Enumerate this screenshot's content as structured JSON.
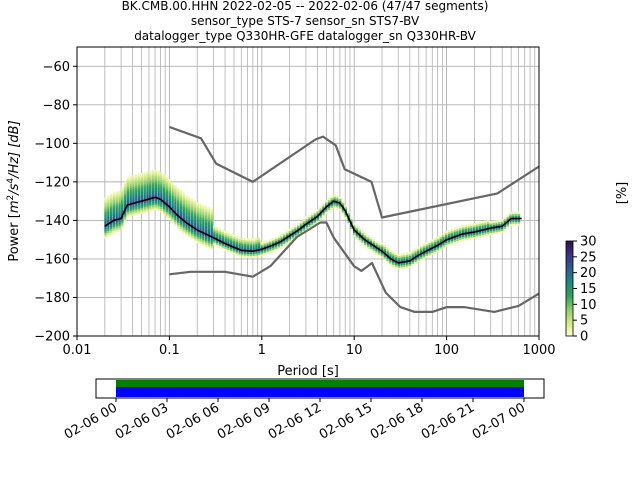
{
  "title_lines": [
    "BK.CMB.00.HHN   2022-02-05 -- 2022-02-06  (47/47 segments)",
    "sensor_type STS-7 sensor_sn STS7-BV",
    "datalogger_type Q330HR-GFE datalogger_sn Q330HR-BV"
  ],
  "colorbar": {
    "label": "[%]",
    "ticks": [
      "0",
      "5",
      "10",
      "15",
      "20",
      "25",
      "30"
    ],
    "tick_values": [
      0,
      5,
      10,
      15,
      20,
      25,
      30
    ],
    "range": [
      0,
      30
    ]
  },
  "timeline": {
    "ticks": [
      "02-06 00",
      "02-06 03",
      "02-06 06",
      "02-06 09",
      "02-06 12",
      "02-06 15",
      "02-06 18",
      "02-06 21",
      "02-07 00"
    ],
    "colors": {
      "upper": "#008000",
      "lower": "#0000ff"
    }
  },
  "chart_data": {
    "type": "line",
    "xlabel": "Period [s]",
    "ylabel": "Power [m²/s⁴/Hz] [dB]",
    "ylabel_parts": {
      "prefix": "Power [",
      "m": "m",
      "two": "2",
      "slash_s": "/s",
      "four": "4",
      "hz": "/Hz] [dB]"
    },
    "x_scale": "log",
    "xlim": [
      0.01,
      1000
    ],
    "ylim": [
      -200,
      -50
    ],
    "x_ticks": [
      0.01,
      0.1,
      1,
      10,
      100,
      1000
    ],
    "x_tick_labels": [
      "0.01",
      "0.1",
      "1",
      "10",
      "100",
      "1000"
    ],
    "y_ticks": [
      -200,
      -180,
      -160,
      -140,
      -120,
      -100,
      -80,
      -60
    ],
    "y_tick_labels": [
      "−200",
      "−180",
      "−160",
      "−140",
      "−120",
      "−100",
      "−80",
      "−60"
    ],
    "grid": true,
    "series": [
      {
        "role": "nhnm",
        "color": "#666666",
        "x": [
          0.1,
          0.22,
          0.32,
          0.8,
          3.8,
          4.6,
          6.3,
          7.9,
          15.4,
          20,
          354.8,
          1000
        ],
        "y": [
          -91.5,
          -97.4,
          -110.5,
          -120.0,
          -98.0,
          -96.5,
          -101.0,
          -113.5,
          -120.0,
          -138.5,
          -126.0,
          -112.0
        ]
      },
      {
        "role": "nlnm",
        "color": "#666666",
        "x": [
          0.1,
          0.17,
          0.4,
          0.8,
          1.24,
          2.4,
          4.3,
          5.0,
          6.0,
          10.0,
          12.0,
          15.6,
          21.9,
          31.6,
          45.0,
          70.0,
          101.0,
          154.0,
          328.0,
          600.0,
          1000
        ],
        "y": [
          -168.0,
          -166.7,
          -166.7,
          -169.2,
          -163.7,
          -148.6,
          -141.1,
          -141.1,
          -149.0,
          -163.8,
          -166.2,
          -162.1,
          -177.5,
          -185.0,
          -187.5,
          -187.5,
          -185.0,
          -185.0,
          -187.5,
          -184.4,
          -178.0
        ]
      },
      {
        "role": "mode",
        "color": "#000000",
        "x": [
          0.02,
          0.025,
          0.03,
          0.035,
          0.05,
          0.07,
          0.08,
          0.1,
          0.12,
          0.15,
          0.2,
          0.3,
          0.4,
          0.5,
          0.6,
          0.8,
          1.0,
          1.3,
          1.6,
          2.0,
          2.5,
          3.0,
          4.0,
          5.0,
          6.0,
          7.0,
          8.0,
          10.0,
          13.0,
          16.0,
          20.0,
          25.0,
          30.0,
          40.0,
          50.0,
          60.0,
          80.0,
          100.0,
          150.0,
          200.0,
          300.0,
          400.0,
          500.0,
          650.0
        ],
        "y": [
          -143.0,
          -140.0,
          -139.0,
          -132.0,
          -130.0,
          -128.0,
          -129.0,
          -133.0,
          -137.0,
          -141.0,
          -145.0,
          -149.0,
          -152.0,
          -154.0,
          -155.5,
          -156.0,
          -155.0,
          -153.0,
          -151.0,
          -148.0,
          -145.0,
          -142.0,
          -138.0,
          -133.0,
          -130.0,
          -131.0,
          -135.0,
          -145.0,
          -150.0,
          -153.0,
          -156.0,
          -160.0,
          -162.0,
          -161.0,
          -158.0,
          -156.0,
          -153.0,
          -150.0,
          -147.0,
          -146.0,
          -144.0,
          -143.0,
          -139.0,
          -139.0
        ]
      }
    ]
  }
}
